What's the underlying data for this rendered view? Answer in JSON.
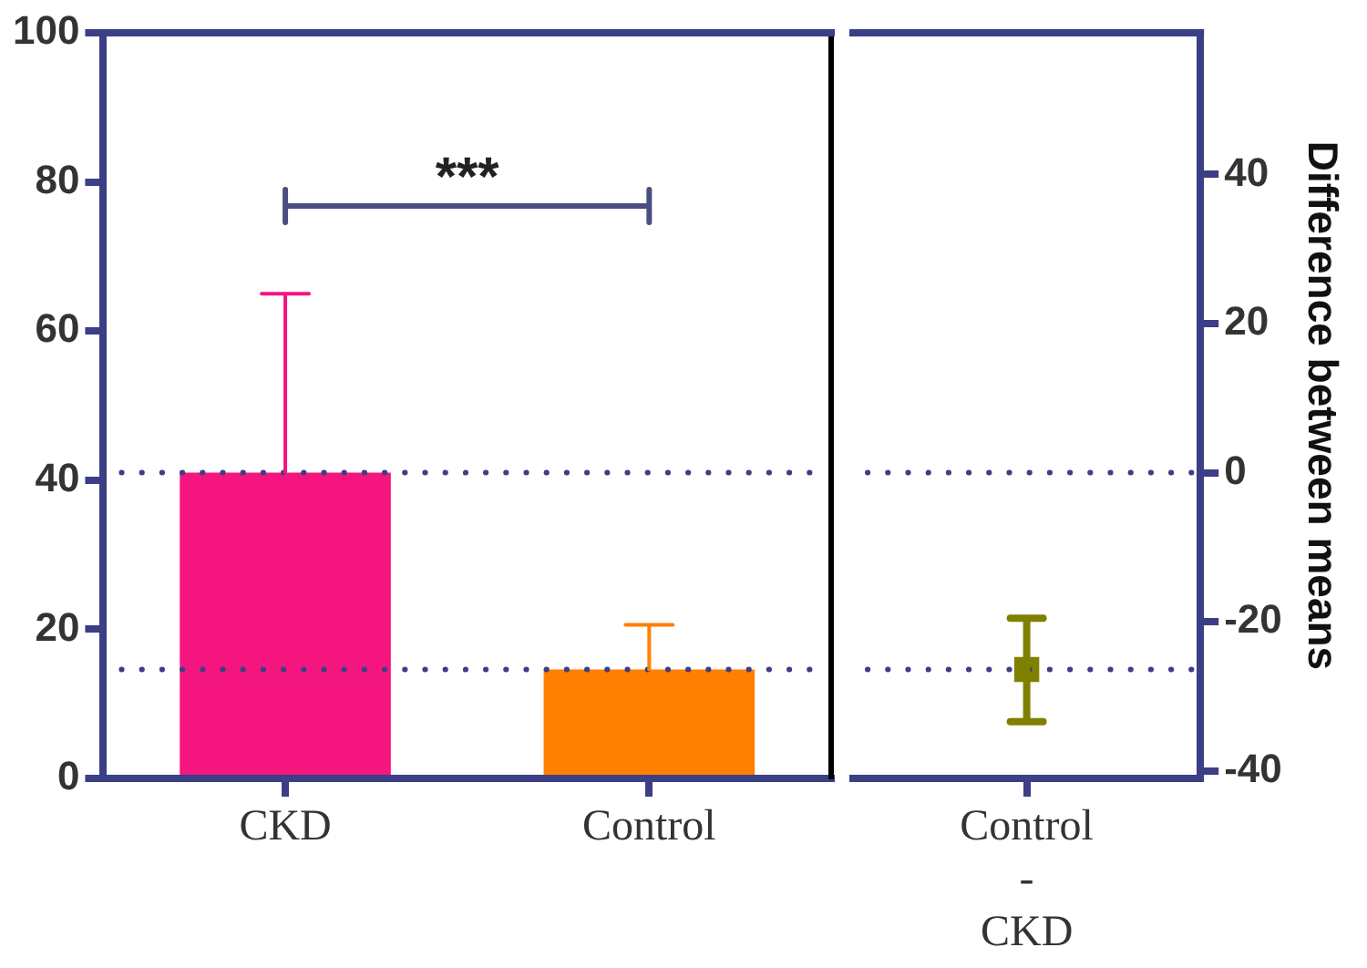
{
  "chart_data": [
    {
      "type": "bar",
      "annotations": [
        "***"
      ],
      "categories": [
        "CKD",
        "Control"
      ],
      "series": [
        {
          "colors": [
            "#f5157f",
            "#ff7f00"
          ],
          "values": [
            41,
            14.6
          ],
          "errors": [
            [
              41,
              65
            ],
            [
              14.6,
              20.6
            ]
          ]
        }
      ],
      "ylim": [
        0,
        100
      ],
      "yticks": [
        0,
        20,
        40,
        60,
        80,
        100
      ],
      "ref_lines": [
        {
          "axis": "y",
          "value": 41,
          "color": "#3b3f85",
          "line_style": "dotted"
        },
        {
          "axis": "y",
          "value": 14.6,
          "color": "#3b3f85",
          "line_style": "dotted"
        }
      ],
      "grid": false,
      "legend": false
    },
    {
      "type": "scatter",
      "y2label": "Difference between means",
      "categories": [
        "Control - CKD"
      ],
      "series": [
        {
          "axis": "y2",
          "color": "#808000",
          "values": [
            -26.4
          ],
          "errors": [
            [
              -33.4,
              -19.5
            ]
          ]
        }
      ],
      "y2lim": [
        -41,
        59
      ],
      "y2ticks": [
        -40,
        -20,
        0,
        20,
        40
      ],
      "ref_lines": [
        {
          "axis": "y2",
          "value": 0,
          "color": "#3b3f85",
          "line_style": "dotted"
        },
        {
          "axis": "y2",
          "value": -26.4,
          "color": "#3b3f85",
          "line_style": "dotted"
        }
      ],
      "grid": false,
      "legend": false,
      "marker": "square"
    }
  ]
}
